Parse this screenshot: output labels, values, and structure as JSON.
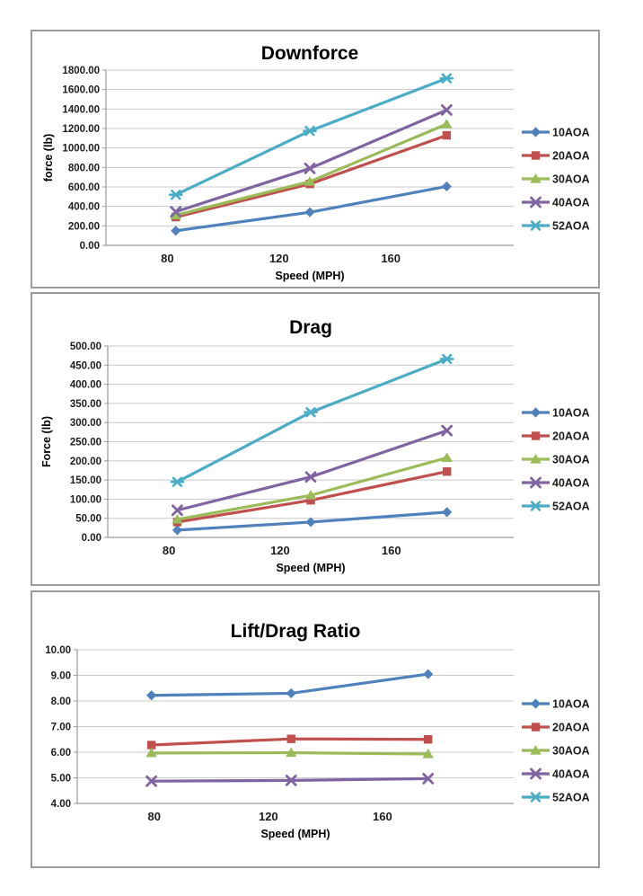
{
  "page": {
    "background": "#ffffff"
  },
  "theme": {
    "panel_border_color": "#9b9b9b",
    "gridline_color": "#c9c9c9",
    "axis_color": "#9b9b9b",
    "tick_text_color": "#1c1c1c",
    "title_text_color": "#000000"
  },
  "chart_data": [
    {
      "type": "line",
      "title": "Downforce",
      "xlabel": "Speed (MPH)",
      "ylabel": "force (lb)",
      "legend_position": "right",
      "grid": true,
      "xlim": [
        58,
        204
      ],
      "ylim": [
        0,
        1800
      ],
      "y_tick_step": 200,
      "x_ticks": [
        80,
        120,
        160
      ],
      "x": [
        83,
        131,
        180
      ],
      "series": [
        {
          "name": "10AOA",
          "color": "#4F81BD",
          "marker": "diamond",
          "values": [
            150,
            340,
            605
          ]
        },
        {
          "name": "20AOA",
          "color": "#C0504D",
          "marker": "square",
          "values": [
            290,
            630,
            1130
          ]
        },
        {
          "name": "30AOA",
          "color": "#9BBB59",
          "marker": "triangle",
          "values": [
            310,
            655,
            1245
          ]
        },
        {
          "name": "40AOA",
          "color": "#8064A2",
          "marker": "x",
          "values": [
            345,
            790,
            1390
          ]
        },
        {
          "name": "52AOA",
          "color": "#4BACC6",
          "marker": "asterisk",
          "values": [
            520,
            1175,
            1715
          ]
        }
      ]
    },
    {
      "type": "line",
      "title": "Drag",
      "xlabel": "Speed (MPH)",
      "ylabel": "Force (lb)",
      "legend_position": "right",
      "grid": true,
      "xlim": [
        58,
        204
      ],
      "ylim": [
        0,
        500
      ],
      "y_tick_step": 50,
      "x_ticks": [
        80,
        120,
        160
      ],
      "x": [
        83,
        131,
        180
      ],
      "series": [
        {
          "name": "10AOA",
          "color": "#4F81BD",
          "marker": "diamond",
          "values": [
            19,
            40,
            66
          ]
        },
        {
          "name": "20AOA",
          "color": "#C0504D",
          "marker": "square",
          "values": [
            40,
            97,
            172
          ]
        },
        {
          "name": "30AOA",
          "color": "#9BBB59",
          "marker": "triangle",
          "values": [
            47,
            110,
            208
          ]
        },
        {
          "name": "40AOA",
          "color": "#8064A2",
          "marker": "x",
          "values": [
            71,
            158,
            279
          ]
        },
        {
          "name": "52AOA",
          "color": "#4BACC6",
          "marker": "asterisk",
          "values": [
            145,
            327,
            466
          ]
        }
      ]
    },
    {
      "type": "line",
      "title": "Lift/Drag Ratio",
      "xlabel": "Speed (MPH)",
      "ylabel": "",
      "legend_position": "right",
      "grid": true,
      "xlim": [
        53,
        206
      ],
      "ylim": [
        4,
        10
      ],
      "y_tick_step": 1,
      "x_ticks": [
        80,
        120,
        160
      ],
      "x": [
        79,
        128,
        176
      ],
      "series": [
        {
          "name": "10AOA",
          "color": "#4F81BD",
          "marker": "diamond",
          "values": [
            8.22,
            8.3,
            9.05
          ]
        },
        {
          "name": "20AOA",
          "color": "#C0504D",
          "marker": "square",
          "values": [
            6.28,
            6.52,
            6.5
          ]
        },
        {
          "name": "30AOA",
          "color": "#9BBB59",
          "marker": "triangle",
          "values": [
            5.97,
            5.98,
            5.93
          ]
        },
        {
          "name": "40AOA",
          "color": "#8064A2",
          "marker": "x",
          "values": [
            4.87,
            4.9,
            4.97
          ]
        },
        {
          "name": "52AOA",
          "color": "#4BACC6",
          "marker": "asterisk",
          "values": [],
          "note": "line not visible (below plotted axis range)"
        }
      ]
    }
  ]
}
